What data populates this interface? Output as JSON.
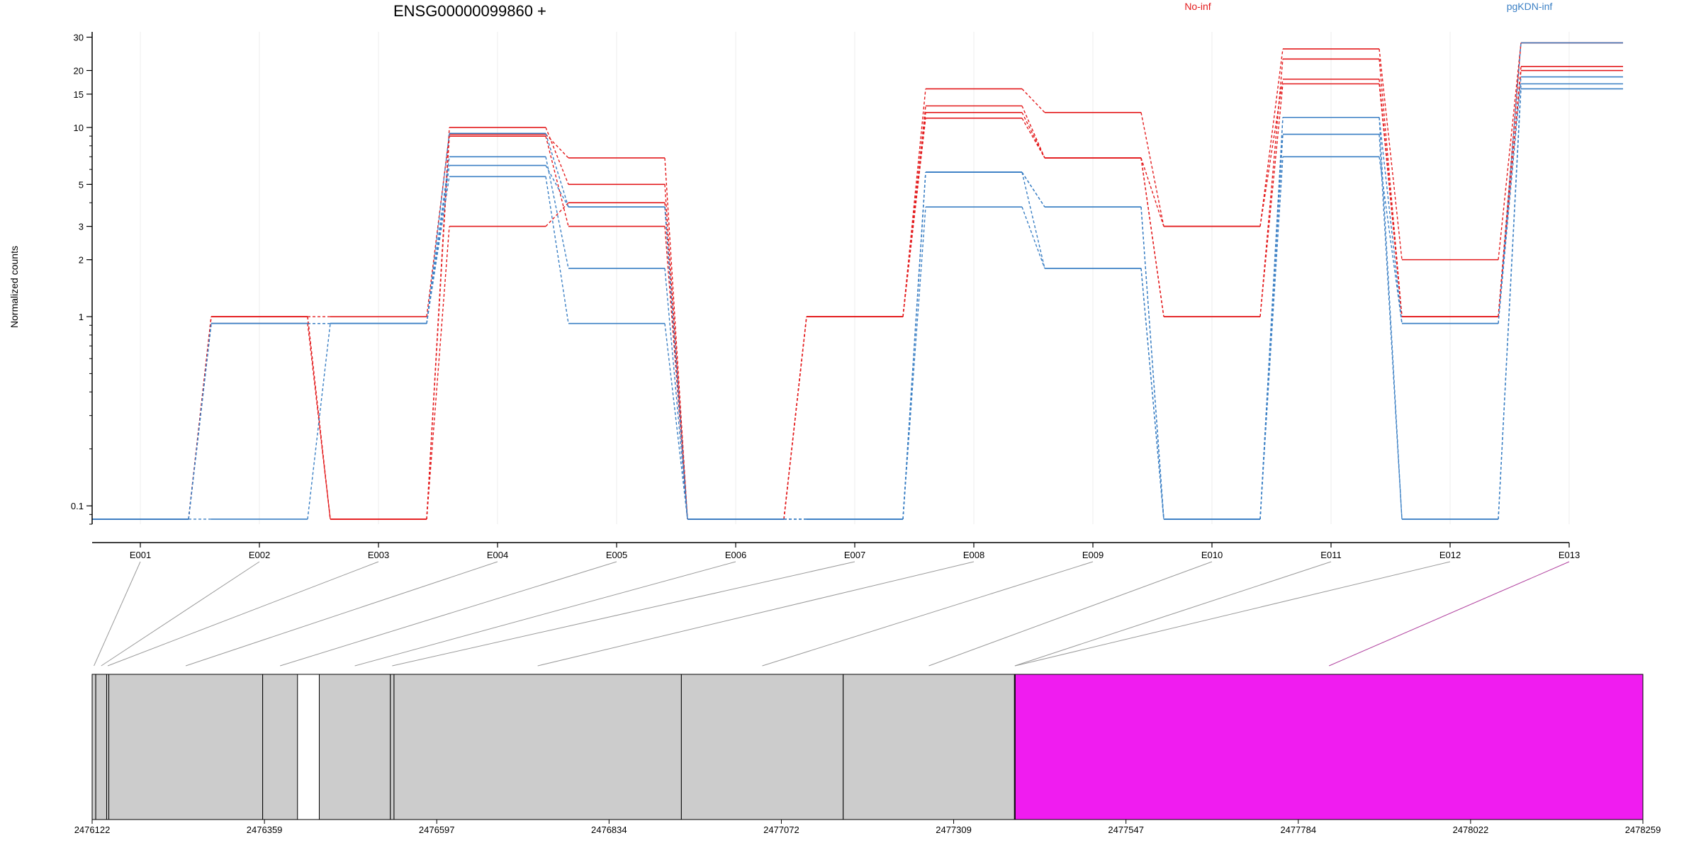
{
  "chart_data": {
    "type": "line",
    "title": "ENSG00000099860 +",
    "ylabel": "Normalized counts",
    "xlabel": "",
    "y_scale": "log",
    "ylim": [
      0.08,
      32
    ],
    "y_ticks": [
      0.1,
      1,
      2,
      3,
      5,
      10,
      15,
      20,
      30
    ],
    "y_tick_labels": [
      "0.1",
      "1",
      "2",
      "3",
      "5",
      "10",
      "15",
      "20",
      "30"
    ],
    "categories": [
      "E001",
      "E002",
      "E003",
      "E004",
      "E005",
      "E006",
      "E007",
      "E008",
      "E009",
      "E010",
      "E011",
      "E012",
      "E013"
    ],
    "grid": "vertical light",
    "legend": [
      {
        "name": "No-inf",
        "color": "#e31a1c"
      },
      {
        "name": "pgKDN-inf",
        "color": "#3a7fc4"
      }
    ],
    "series": [
      {
        "group": "No-inf",
        "values": [
          0.085,
          1.0,
          0.085,
          10.0,
          5.0,
          0.085,
          1.0,
          16.0,
          12.0,
          3.0,
          26.0,
          2.0,
          28.0
        ]
      },
      {
        "group": "No-inf",
        "values": [
          0.085,
          1.0,
          1.0,
          9.2,
          6.9,
          0.085,
          1.0,
          13.0,
          6.9,
          1.0,
          23.0,
          1.0,
          21.0
        ]
      },
      {
        "group": "No-inf",
        "values": [
          0.085,
          1.0,
          0.085,
          3.0,
          4.0,
          0.085,
          1.0,
          12.0,
          6.9,
          3.0,
          18.0,
          1.0,
          20.0
        ]
      },
      {
        "group": "No-inf",
        "values": [
          0.085,
          0.92,
          0.085,
          9.0,
          3.0,
          0.085,
          1.0,
          11.2,
          6.9,
          1.0,
          17.0,
          1.0,
          28.0
        ]
      },
      {
        "group": "pgKDN-inf",
        "values": [
          0.085,
          0.92,
          0.92,
          9.3,
          3.8,
          0.085,
          0.085,
          5.8,
          3.8,
          0.085,
          11.3,
          0.92,
          18.5
        ]
      },
      {
        "group": "pgKDN-inf",
        "values": [
          0.085,
          0.92,
          0.92,
          7.0,
          1.8,
          0.085,
          0.085,
          5.8,
          3.8,
          0.085,
          11.3,
          0.085,
          17.0
        ]
      },
      {
        "group": "pgKDN-inf",
        "values": [
          0.085,
          0.085,
          0.92,
          6.3,
          3.8,
          0.085,
          0.085,
          3.8,
          1.8,
          0.085,
          9.2,
          0.085,
          16.0
        ]
      },
      {
        "group": "pgKDN-inf",
        "values": [
          0.085,
          0.92,
          0.92,
          5.5,
          0.92,
          0.085,
          0.085,
          5.8,
          1.8,
          0.085,
          7.0,
          0.92,
          28.0
        ]
      }
    ],
    "genomic_axis": {
      "tick_labels": [
        "2476122",
        "2476359",
        "2476597",
        "2476834",
        "2477072",
        "2477309",
        "2477547",
        "2477784",
        "2478022",
        "2478259"
      ],
      "range": [
        2476122,
        2478259
      ],
      "exons": [
        {
          "id": "E001",
          "start": 2476122,
          "end": 2476127,
          "fill": "#cccccc"
        },
        {
          "id": "E002",
          "start": 2476127,
          "end": 2476142,
          "fill": "#cccccc"
        },
        {
          "id": "E003",
          "start": 2476142,
          "end": 2476145,
          "fill": "#cccccc"
        },
        {
          "id": "E004",
          "start": 2476145,
          "end": 2476357,
          "fill": "#cccccc"
        },
        {
          "id": "E005",
          "start": 2476357,
          "end": 2476405,
          "fill": "#cccccc"
        },
        {
          "id": "E006",
          "start": 2476435,
          "end": 2476533,
          "fill": "#cccccc"
        },
        {
          "id": "E007",
          "start": 2476533,
          "end": 2476538,
          "fill": "#cccccc"
        },
        {
          "id": "E008",
          "start": 2476538,
          "end": 2476934,
          "fill": "#cccccc"
        },
        {
          "id": "E009",
          "start": 2476934,
          "end": 2477157,
          "fill": "#cccccc"
        },
        {
          "id": "E010",
          "start": 2477157,
          "end": 2477393,
          "fill": "#cccccc"
        },
        {
          "id": "E011",
          "start": 2477393,
          "end": 2477394,
          "fill": "#cccccc"
        },
        {
          "id": "E012",
          "start": 2477394,
          "end": 2477394,
          "fill": "#cccccc"
        },
        {
          "id": "E013",
          "start": 2477394,
          "end": 2478259,
          "fill": "#f01cf0"
        }
      ]
    }
  }
}
